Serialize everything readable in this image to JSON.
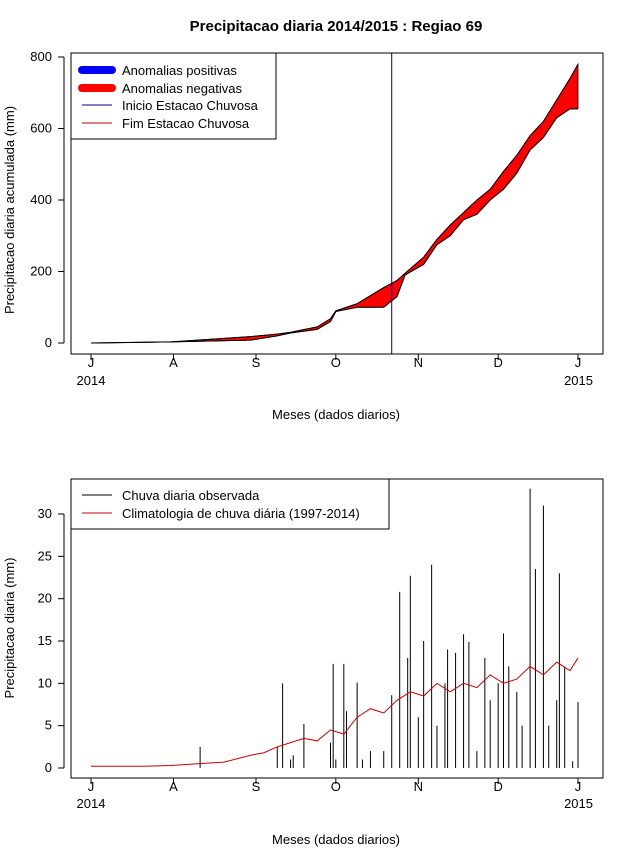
{
  "chart_data": [
    {
      "type": "area",
      "title": "Precipitacao diaria 2014/2015 : Regiao 69",
      "xlabel": "Meses (dados diarios)",
      "ylabel": "Precipitacao diaria acumulada (mm)",
      "ylim": [
        0,
        800
      ],
      "yticks": [
        0,
        200,
        400,
        600,
        800
      ],
      "month_ticks": [
        "J",
        "A",
        "S",
        "O",
        "N",
        "D",
        "J"
      ],
      "year_labels": [
        "2014",
        "2015"
      ],
      "legend": {
        "position": "top-left",
        "items": [
          {
            "label": "Anomalias positivas",
            "color": "#0000ff",
            "kind": "thick"
          },
          {
            "label": "Anomalias negativas",
            "color": "#ff0000",
            "kind": "thick"
          },
          {
            "label": "Inicio Estacao Chuvosa",
            "color": "#00008b",
            "kind": "line"
          },
          {
            "label": "Fim Estacao Chuvosa",
            "color": "#cc0000",
            "kind": "line"
          }
        ]
      },
      "rainy_season_start_day": 113,
      "observed_cumulative": {
        "day": [
          0,
          30,
          60,
          70,
          75,
          85,
          90,
          92,
          100,
          110,
          115,
          118,
          125,
          130,
          135,
          140,
          145,
          150,
          155,
          160,
          165,
          170,
          175,
          180,
          183
        ],
        "value": [
          0,
          3,
          8,
          20,
          28,
          38,
          60,
          88,
          100,
          100,
          130,
          190,
          220,
          275,
          300,
          345,
          360,
          400,
          430,
          475,
          540,
          575,
          630,
          655,
          655
        ]
      },
      "climatology_cumulative": {
        "day": [
          0,
          30,
          60,
          70,
          75,
          85,
          90,
          92,
          100,
          110,
          115,
          118,
          125,
          130,
          135,
          140,
          145,
          150,
          155,
          160,
          165,
          170,
          175,
          180,
          183
        ],
        "value": [
          0,
          3,
          18,
          25,
          30,
          45,
          68,
          90,
          110,
          155,
          175,
          195,
          240,
          290,
          330,
          365,
          400,
          430,
          480,
          525,
          580,
          620,
          680,
          740,
          780
        ]
      }
    },
    {
      "type": "bar",
      "title": "",
      "xlabel": "Meses (dados diarios)",
      "ylabel": "Precipitacao diaria (mm)",
      "ylim": [
        0,
        33
      ],
      "yticks": [
        0,
        5,
        10,
        15,
        20,
        25,
        30
      ],
      "month_ticks": [
        "J",
        "A",
        "S",
        "O",
        "N",
        "D",
        "J"
      ],
      "year_labels": [
        "2014",
        "2015"
      ],
      "legend": {
        "position": "top-left",
        "items": [
          {
            "label": "Chuva diaria observada",
            "color": "#000000"
          },
          {
            "label": "Climatologia de chuva diária (1997-2014)",
            "color": "#cc0000"
          }
        ]
      },
      "observed_daily": {
        "day": [
          41,
          70,
          72,
          75,
          76,
          80,
          90,
          91,
          92,
          95,
          96,
          100,
          102,
          105,
          110,
          113,
          116,
          119,
          120,
          123,
          125,
          128,
          130,
          133,
          134,
          137,
          140,
          142,
          145,
          148,
          150,
          153,
          155,
          157,
          160,
          162,
          165,
          167,
          170,
          172,
          175,
          176,
          178,
          181,
          183
        ],
        "value": [
          2.5,
          2.5,
          10,
          1,
          1.5,
          5.2,
          3,
          12.3,
          1,
          12.3,
          6.7,
          10.1,
          1,
          2,
          2,
          8.6,
          20.8,
          13,
          22.7,
          6,
          15,
          24,
          5,
          10,
          14,
          13.6,
          15.8,
          14.9,
          2,
          13,
          8,
          10,
          15.9,
          12,
          9,
          5,
          33,
          23.5,
          31,
          5,
          8,
          23,
          12,
          0.8,
          7.8
        ]
      },
      "climatology_daily": {
        "day": [
          0,
          20,
          30,
          40,
          50,
          60,
          65,
          70,
          75,
          80,
          85,
          90,
          95,
          100,
          105,
          110,
          115,
          120,
          125,
          130,
          135,
          140,
          145,
          150,
          155,
          160,
          165,
          170,
          175,
          180,
          183
        ],
        "value": [
          0.2,
          0.2,
          0.3,
          0.5,
          0.7,
          1.5,
          1.8,
          2.5,
          3,
          3.5,
          3.2,
          4.5,
          4,
          6,
          7,
          6.5,
          8,
          9,
          8.5,
          10,
          9,
          10,
          9.5,
          11,
          10,
          10.5,
          12,
          11,
          12.5,
          11.5,
          13
        ]
      }
    }
  ]
}
